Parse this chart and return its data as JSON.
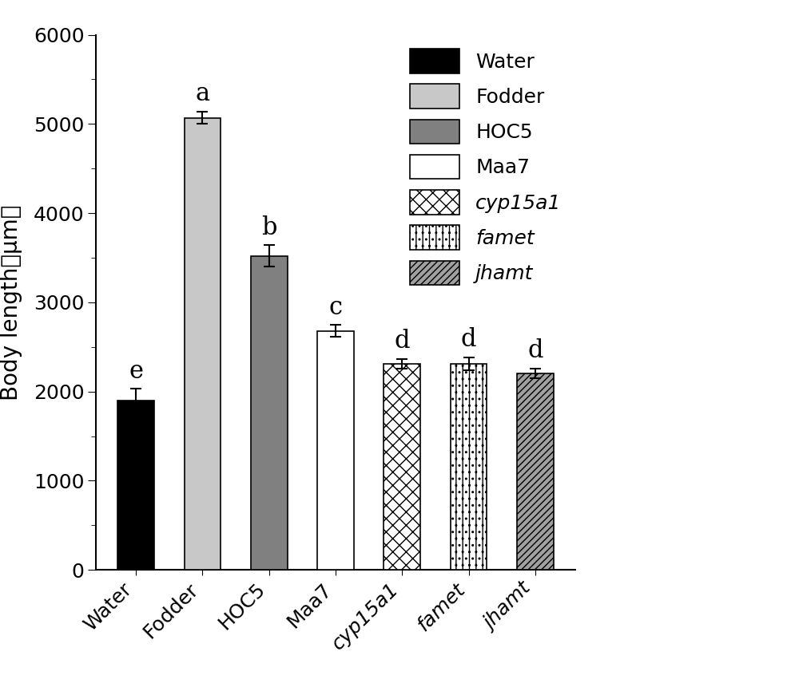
{
  "categories": [
    "Water",
    "Fodder",
    "HOC5",
    "Maa7",
    "cyp15a1",
    "famet",
    "jhamt"
  ],
  "values": [
    1900,
    5070,
    3520,
    2680,
    2310,
    2310,
    2200
  ],
  "errors": [
    130,
    70,
    120,
    65,
    55,
    70,
    55
  ],
  "significance": [
    "e",
    "a",
    "b",
    "c",
    "d",
    "d",
    "d"
  ],
  "fill_colors": [
    "#000000",
    "#c8c8c8",
    "#808080",
    "#ffffff",
    "#ffffff",
    "#ffffff",
    "#a0a0a0"
  ],
  "edge_colors": [
    "#000000",
    "#000000",
    "#000000",
    "#000000",
    "#000000",
    "#000000",
    "#000000"
  ],
  "hatch_patterns": [
    "",
    "",
    "",
    "",
    "xx",
    "..||",
    "////"
  ],
  "ylabel": "Body length（μm）",
  "ylim": [
    0,
    6000
  ],
  "yticks": [
    0,
    1000,
    2000,
    3000,
    4000,
    5000,
    6000
  ],
  "legend_labels": [
    "Water",
    "Fodder",
    "HOC5",
    "Maa7",
    "cyp15a1",
    "famet",
    "jhamt"
  ],
  "legend_fill_colors": [
    "#000000",
    "#c8c8c8",
    "#808080",
    "#ffffff",
    "#ffffff",
    "#ffffff",
    "#a0a0a0"
  ],
  "legend_hatch": [
    "",
    "",
    "",
    "",
    "xx",
    "..||",
    "////"
  ],
  "italic_labels": [
    false,
    false,
    false,
    false,
    true,
    true,
    true
  ],
  "background_color": "#ffffff",
  "bar_width": 0.55,
  "label_fontsize": 20,
  "tick_fontsize": 18,
  "sig_fontsize": 22
}
